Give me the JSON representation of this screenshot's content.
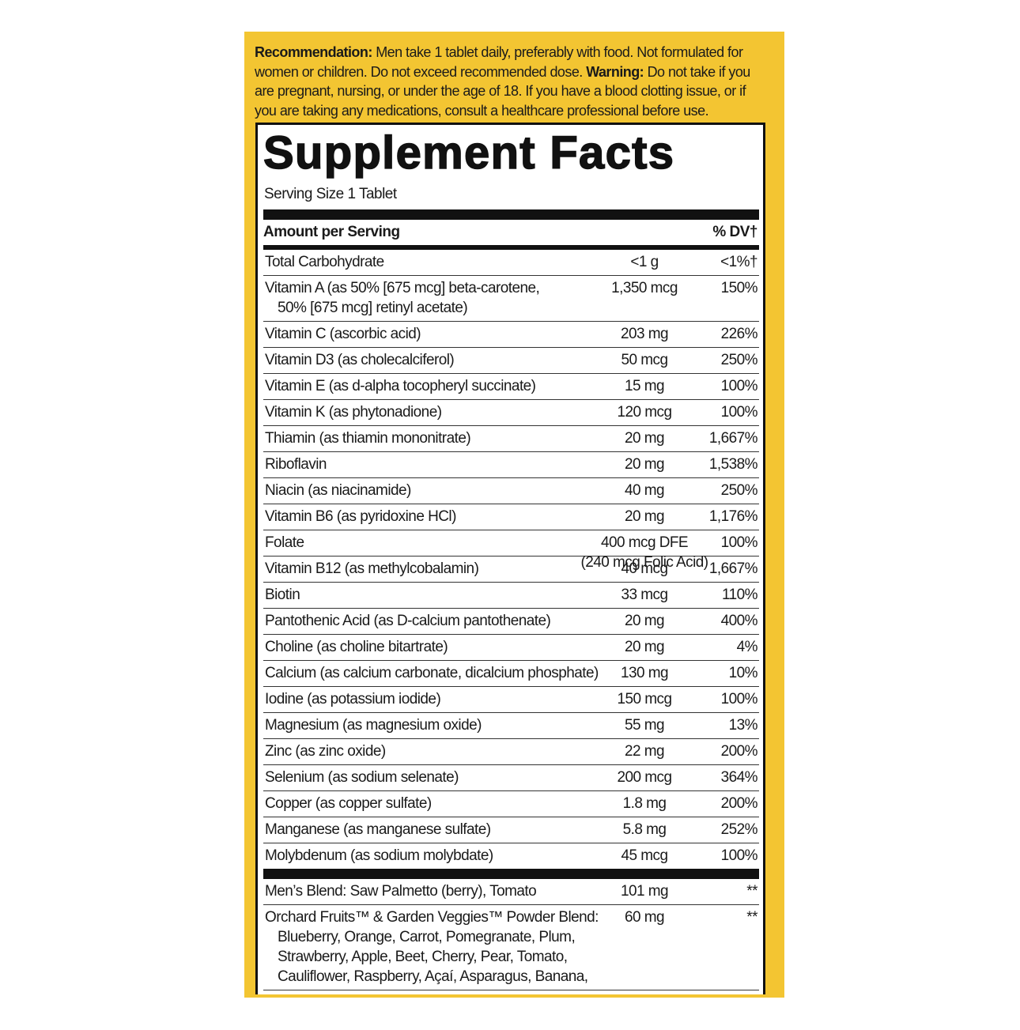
{
  "recommendation": {
    "label": "Recommendation:",
    "text": "Men take 1 tablet daily, preferably with food. Not formulated for women or children. Do not exceed recommended dose.",
    "warning_label": "Warning:",
    "warning_text": "Do not take if you are pregnant, nursing, or under the age of 18. If you have a blood clotting issue, or if you are taking any medications, consult a healthcare professional before use."
  },
  "title": "Supplement Facts",
  "serving_size": "Serving Size 1 Tablet",
  "header": {
    "amount": "Amount per Serving",
    "dv": "% DV†"
  },
  "rows": [
    {
      "name": [
        "Total Carbohydrate"
      ],
      "amount": [
        "<1 g"
      ],
      "dv": "<1%†"
    },
    {
      "name": [
        "Vitamin A (as 50% [675 mcg] beta-carotene,",
        "50% [675 mcg] retinyl acetate)"
      ],
      "amount": [
        "1,350 mcg"
      ],
      "dv": "150%"
    },
    {
      "name": [
        "Vitamin C (ascorbic acid)"
      ],
      "amount": [
        "203 mg"
      ],
      "dv": "226%"
    },
    {
      "name": [
        "Vitamin D3 (as cholecalciferol)"
      ],
      "amount": [
        "50 mcg"
      ],
      "dv": "250%"
    },
    {
      "name": [
        "Vitamin E (as d-alpha tocopheryl succinate)"
      ],
      "amount": [
        "15 mg"
      ],
      "dv": "100%"
    },
    {
      "name": [
        "Vitamin K (as phytonadione)"
      ],
      "amount": [
        "120 mcg"
      ],
      "dv": "100%"
    },
    {
      "name": [
        "Thiamin (as thiamin mononitrate)"
      ],
      "amount": [
        "20 mg"
      ],
      "dv": "1,667%"
    },
    {
      "name": [
        "Riboflavin"
      ],
      "amount": [
        "20 mg"
      ],
      "dv": "1,538%"
    },
    {
      "name": [
        "Niacin (as niacinamide)"
      ],
      "amount": [
        "40 mg"
      ],
      "dv": "250%"
    },
    {
      "name": [
        "Vitamin B6 (as pyridoxine HCl)"
      ],
      "amount": [
        "20 mg"
      ],
      "dv": "1,176%"
    },
    {
      "name": [
        "Folate"
      ],
      "amount": [
        "400 mcg DFE",
        "(240 mcg Folic Acid)"
      ],
      "dv": "100%"
    },
    {
      "name": [
        "Vitamin B12 (as methylcobalamin)"
      ],
      "amount": [
        "40 mcg"
      ],
      "dv": "1,667%"
    },
    {
      "name": [
        "Biotin"
      ],
      "amount": [
        "33 mcg"
      ],
      "dv": "110%"
    },
    {
      "name": [
        "Pantothenic Acid (as D-calcium pantothenate)"
      ],
      "amount": [
        "20 mg"
      ],
      "dv": "400%"
    },
    {
      "name": [
        "Choline (as choline bitartrate)"
      ],
      "amount": [
        "20 mg"
      ],
      "dv": "4%"
    },
    {
      "name": [
        "Calcium (as calcium carbonate, dicalcium phosphate)"
      ],
      "amount": [
        "130 mg"
      ],
      "dv": "10%"
    },
    {
      "name": [
        "Iodine (as potassium iodide)"
      ],
      "amount": [
        "150 mcg"
      ],
      "dv": "100%"
    },
    {
      "name": [
        "Magnesium (as magnesium oxide)"
      ],
      "amount": [
        "55 mg"
      ],
      "dv": "13%"
    },
    {
      "name": [
        "Zinc (as zinc oxide)"
      ],
      "amount": [
        "22 mg"
      ],
      "dv": "200%"
    },
    {
      "name": [
        "Selenium (as sodium selenate)"
      ],
      "amount": [
        "200 mcg"
      ],
      "dv": "364%"
    },
    {
      "name": [
        "Copper (as copper sulfate)"
      ],
      "amount": [
        "1.8 mg"
      ],
      "dv": "200%"
    },
    {
      "name": [
        "Manganese (as manganese sulfate)"
      ],
      "amount": [
        "5.8 mg"
      ],
      "dv": "252%"
    },
    {
      "name": [
        "Molybdenum (as sodium molybdate)"
      ],
      "amount": [
        "45 mcg"
      ],
      "dv": "100%"
    }
  ],
  "blends": [
    {
      "name": [
        "Men’s Blend: Saw Palmetto (berry), Tomato"
      ],
      "amount": [
        "101 mg"
      ],
      "dv": "**"
    },
    {
      "name": [
        "Orchard Fruits™ & Garden Veggies™ Powder Blend:",
        "Blueberry, Orange, Carrot, Pomegranate, Plum,",
        "Strawberry, Apple, Beet, Cherry, Pear, Tomato,",
        "Cauliflower, Raspberry, Açaí, Asparagus, Banana,"
      ],
      "amount": [
        "60 mg"
      ],
      "dv": "**"
    }
  ]
}
